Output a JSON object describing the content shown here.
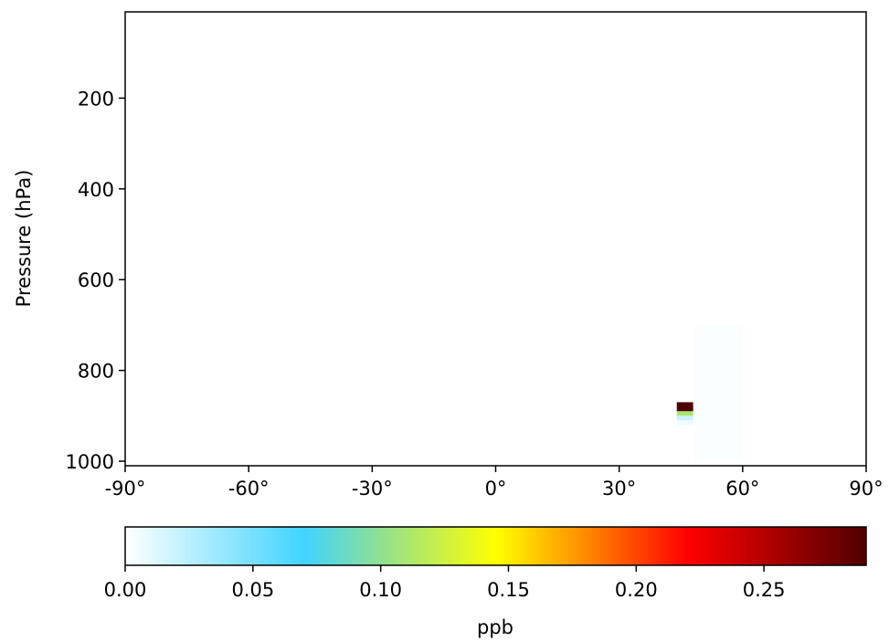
{
  "chart_data": {
    "type": "heatmap",
    "title": "",
    "xlabel": "",
    "ylabel": "Pressure (hPa)",
    "xlim": [
      -90,
      90
    ],
    "ylim": [
      1010,
      10
    ],
    "y_inverted": true,
    "x_ticks": [
      -90,
      -60,
      -30,
      0,
      30,
      60,
      90
    ],
    "x_tick_labels": [
      "-90°",
      "-60°",
      "-30°",
      "0°",
      "30°",
      "60°",
      "90°"
    ],
    "y_ticks": [
      200,
      400,
      600,
      800,
      1000
    ],
    "y_tick_labels": [
      "200",
      "400",
      "600",
      "800",
      "1000"
    ],
    "grid": false,
    "colorbar": {
      "label": "ppb",
      "orientation": "horizontal",
      "placement": "bottom",
      "range": [
        0,
        0.29
      ],
      "ticks": [
        0.0,
        0.05,
        0.1,
        0.15,
        0.2,
        0.25
      ],
      "tick_labels": [
        "0.00",
        "0.05",
        "0.10",
        "0.15",
        "0.20",
        "0.25"
      ],
      "colormap_stops": [
        {
          "value": 0.0,
          "color": "#ffffff"
        },
        {
          "value": 0.07,
          "color": "#40d4ff"
        },
        {
          "value": 0.1,
          "color": "#90e090"
        },
        {
          "value": 0.145,
          "color": "#ffff00"
        },
        {
          "value": 0.18,
          "color": "#ff8a00"
        },
        {
          "value": 0.22,
          "color": "#ff0000"
        },
        {
          "value": 0.29,
          "color": "#500000"
        }
      ]
    },
    "cells": [
      {
        "lon": [
          44,
          48
        ],
        "p": [
          870,
          890
        ],
        "value": 0.29
      },
      {
        "lon": [
          44,
          48
        ],
        "p": [
          890,
          900
        ],
        "value": 0.11
      },
      {
        "lon": [
          44,
          48
        ],
        "p": [
          900,
          910
        ],
        "value": 0.02
      },
      {
        "lon": [
          44,
          48
        ],
        "p": [
          910,
          920
        ],
        "value": 0.006
      },
      {
        "lon": [
          48,
          60
        ],
        "p": [
          700,
          1000
        ],
        "value": 0.002
      }
    ]
  }
}
